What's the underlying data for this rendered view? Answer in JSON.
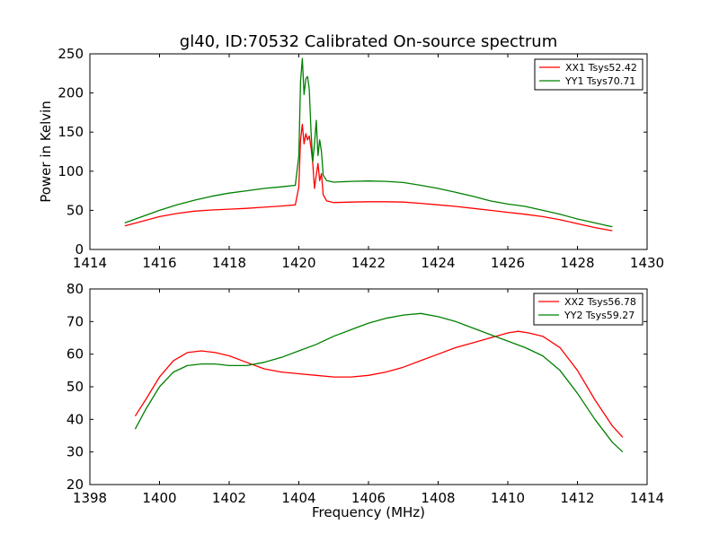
{
  "chart_data": [
    {
      "type": "line",
      "title": "gl40, ID:70532 Calibrated On-source spectrum",
      "xlabel": "",
      "ylabel": "Power in Kelvin",
      "xlim": [
        1414,
        1430
      ],
      "ylim": [
        0,
        250
      ],
      "xticks": [
        "1414",
        "1416",
        "1418",
        "1420",
        "1422",
        "1424",
        "1426",
        "1428",
        "1430"
      ],
      "yticks": [
        "0",
        "50",
        "100",
        "150",
        "200",
        "250"
      ],
      "legend_position": "top-right",
      "series": [
        {
          "name": "XX1 Tsys52.42",
          "color": "#ff0000",
          "x": [
            1415.0,
            1415.5,
            1416.0,
            1416.5,
            1417.0,
            1417.5,
            1418.0,
            1418.5,
            1419.0,
            1419.5,
            1419.9,
            1420.0,
            1420.05,
            1420.1,
            1420.15,
            1420.2,
            1420.25,
            1420.3,
            1420.35,
            1420.4,
            1420.45,
            1420.5,
            1420.55,
            1420.6,
            1420.65,
            1420.7,
            1420.8,
            1421.0,
            1421.5,
            1422.0,
            1422.5,
            1423.0,
            1423.5,
            1424.0,
            1424.5,
            1425.0,
            1425.5,
            1426.0,
            1426.5,
            1427.0,
            1427.5,
            1428.0,
            1428.5,
            1429.0
          ],
          "y": [
            30,
            36,
            42,
            46,
            49,
            50.5,
            51.5,
            52.5,
            54,
            55.5,
            57,
            80,
            140,
            160,
            135,
            148,
            140,
            145,
            130,
            110,
            78,
            95,
            110,
            88,
            97,
            70,
            62,
            60,
            60.5,
            61,
            61,
            60.5,
            59,
            57,
            55,
            52.5,
            50,
            47.5,
            45,
            42,
            38,
            33,
            28,
            24
          ]
        },
        {
          "name": "YY1 Tsys70.71",
          "color": "#008000",
          "x": [
            1415.0,
            1415.5,
            1416.0,
            1416.5,
            1417.0,
            1417.5,
            1418.0,
            1418.5,
            1419.0,
            1419.5,
            1419.9,
            1420.0,
            1420.05,
            1420.1,
            1420.15,
            1420.2,
            1420.25,
            1420.3,
            1420.35,
            1420.4,
            1420.45,
            1420.5,
            1420.55,
            1420.6,
            1420.65,
            1420.7,
            1420.8,
            1421.0,
            1421.5,
            1422.0,
            1422.5,
            1423.0,
            1423.5,
            1424.0,
            1424.5,
            1425.0,
            1425.5,
            1426.0,
            1426.5,
            1427.0,
            1427.5,
            1428.0,
            1428.5,
            1429.0
          ],
          "y": [
            34,
            42,
            50,
            57,
            63,
            68,
            72,
            75,
            78,
            80,
            82,
            120,
            215,
            244,
            198,
            218,
            221,
            205,
            150,
            112,
            135,
            165,
            120,
            140,
            125,
            95,
            88,
            86,
            87,
            87.5,
            87,
            85.5,
            82,
            78,
            73,
            68,
            62,
            58,
            55,
            50,
            45,
            39,
            34,
            29
          ]
        }
      ]
    },
    {
      "type": "line",
      "title": "",
      "xlabel": "Frequency (MHz)",
      "ylabel": "",
      "xlim": [
        1398,
        1414
      ],
      "ylim": [
        20,
        80
      ],
      "xticks": [
        "1398",
        "1400",
        "1402",
        "1404",
        "1406",
        "1408",
        "1410",
        "1412",
        "1414"
      ],
      "yticks": [
        "20",
        "30",
        "40",
        "50",
        "60",
        "70",
        "80"
      ],
      "legend_position": "top-right",
      "series": [
        {
          "name": "XX2 Tsys56.78",
          "color": "#ff0000",
          "x": [
            1399.3,
            1399.6,
            1400.0,
            1400.4,
            1400.8,
            1401.2,
            1401.6,
            1402.0,
            1402.5,
            1403.0,
            1403.5,
            1404.0,
            1404.5,
            1405.0,
            1405.5,
            1406.0,
            1406.5,
            1407.0,
            1407.5,
            1408.0,
            1408.5,
            1409.0,
            1409.5,
            1410.0,
            1410.3,
            1410.6,
            1411.0,
            1411.5,
            1412.0,
            1412.5,
            1413.0,
            1413.3
          ],
          "y": [
            41,
            46,
            53,
            58,
            60.5,
            61,
            60.5,
            59.5,
            57.5,
            55.5,
            54.5,
            54,
            53.5,
            53,
            53,
            53.5,
            54.5,
            56,
            58,
            60,
            62,
            63.5,
            65,
            66.5,
            67,
            66.5,
            65.5,
            62,
            55,
            46,
            38,
            34.5
          ]
        },
        {
          "name": "YY2 Tsys59.27",
          "color": "#008000",
          "x": [
            1399.3,
            1399.6,
            1400.0,
            1400.4,
            1400.8,
            1401.2,
            1401.6,
            1402.0,
            1402.5,
            1403.0,
            1403.5,
            1404.0,
            1404.5,
            1405.0,
            1405.5,
            1406.0,
            1406.5,
            1407.0,
            1407.5,
            1408.0,
            1408.5,
            1409.0,
            1409.5,
            1410.0,
            1410.5,
            1411.0,
            1411.5,
            1412.0,
            1412.5,
            1413.0,
            1413.3
          ],
          "y": [
            37,
            43,
            50,
            54.5,
            56.5,
            57,
            57,
            56.5,
            56.5,
            57.5,
            59,
            61,
            63,
            65.5,
            67.5,
            69.5,
            71,
            72,
            72.5,
            71.5,
            70,
            68,
            66,
            64,
            62,
            59.5,
            55,
            48,
            40,
            33,
            30
          ]
        }
      ]
    }
  ]
}
